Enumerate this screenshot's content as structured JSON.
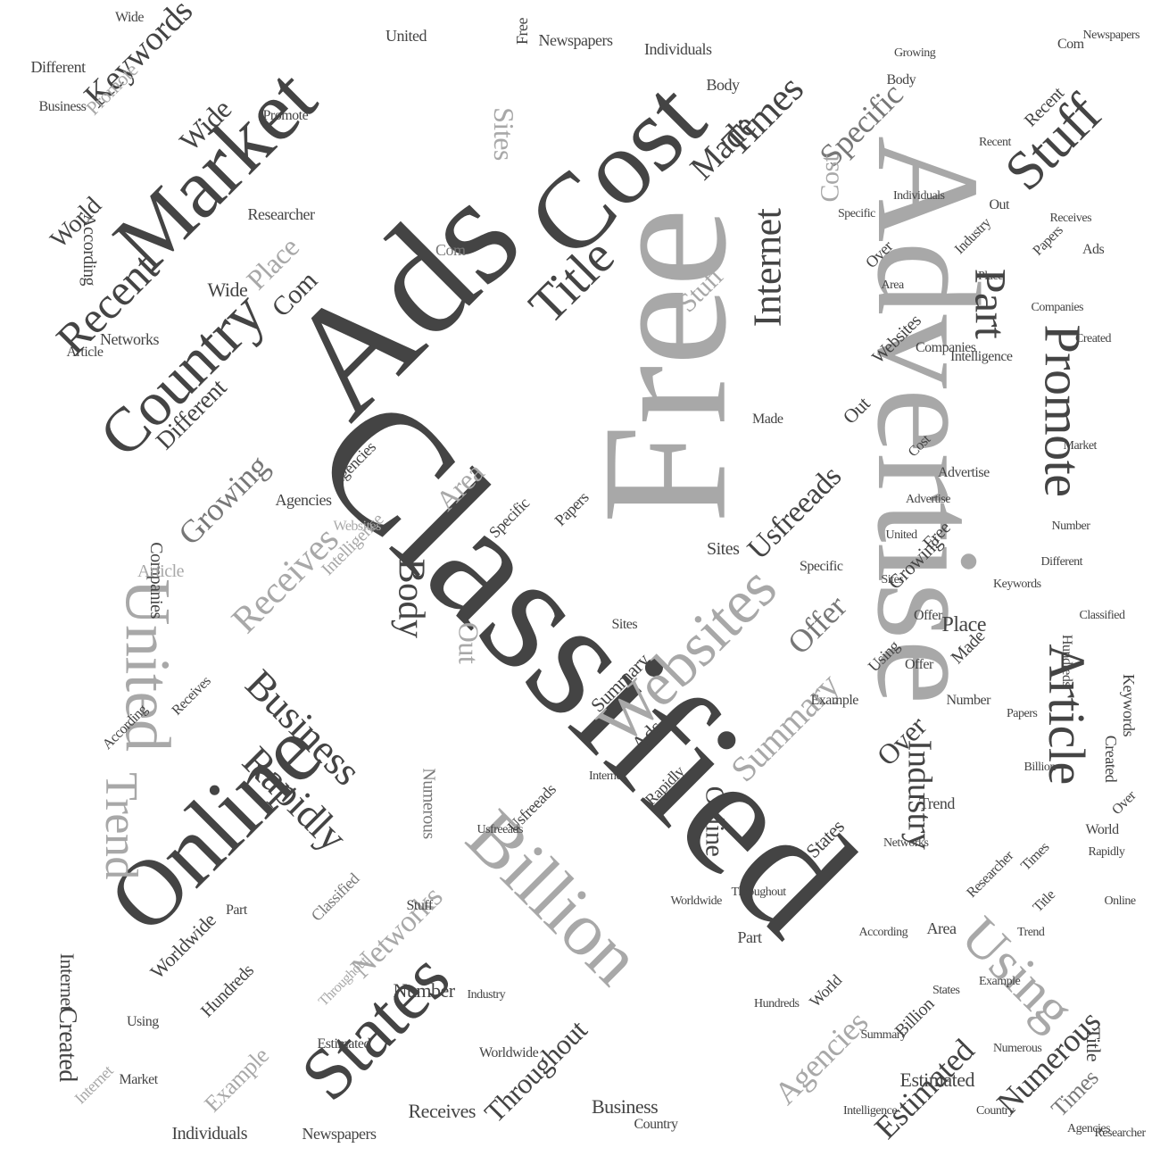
{
  "palette": {
    "dark": "#444444",
    "mid": "#777777",
    "light": "#a8a8a8",
    "faint": "#cfcfcf"
  },
  "words": [
    {
      "text": "Classified",
      "tone": "dark"
    },
    {
      "text": "Free",
      "tone": "light"
    },
    {
      "text": "Advertise",
      "tone": "light"
    },
    {
      "text": "Ads",
      "tone": "dark"
    },
    {
      "text": "Online",
      "tone": "dark"
    },
    {
      "text": "Cost",
      "tone": "dark"
    },
    {
      "text": "Market",
      "tone": "dark"
    },
    {
      "text": "Billion",
      "tone": "light"
    },
    {
      "text": "Websites",
      "tone": "light"
    },
    {
      "text": "United",
      "tone": "light"
    },
    {
      "text": "States",
      "tone": "dark"
    },
    {
      "text": "Country",
      "tone": "dark"
    },
    {
      "text": "Stuff",
      "tone": "dark"
    },
    {
      "text": "Promote",
      "tone": "dark"
    },
    {
      "text": "Article",
      "tone": "dark"
    },
    {
      "text": "Title",
      "tone": "dark"
    },
    {
      "text": "Using",
      "tone": "light"
    },
    {
      "text": "Trend",
      "tone": "light"
    },
    {
      "text": "Recent",
      "tone": "dark"
    },
    {
      "text": "Business",
      "tone": "dark"
    },
    {
      "text": "Rapidly",
      "tone": "dark"
    },
    {
      "text": "Internet",
      "tone": "dark"
    },
    {
      "text": "Times",
      "tone": "dark"
    },
    {
      "text": "Part",
      "tone": "dark"
    },
    {
      "text": "Body",
      "tone": "dark"
    },
    {
      "text": "Receives",
      "tone": "light"
    },
    {
      "text": "Keywords",
      "tone": "dark"
    },
    {
      "text": "Specific",
      "tone": "mid"
    },
    {
      "text": "Summary",
      "tone": "light"
    },
    {
      "text": "Industry",
      "tone": "dark"
    },
    {
      "text": "Growing",
      "tone": "mid"
    },
    {
      "text": "Usfreeads",
      "tone": "dark"
    },
    {
      "text": "Offer",
      "tone": "mid"
    },
    {
      "text": "Made",
      "tone": "dark"
    },
    {
      "text": "Estimated",
      "tone": "dark"
    },
    {
      "text": "Numerous",
      "tone": "dark"
    },
    {
      "text": "Agencies",
      "tone": "light"
    },
    {
      "text": "Throughout",
      "tone": "dark"
    },
    {
      "text": "Networks",
      "tone": "light"
    },
    {
      "text": "Place",
      "tone": "light"
    },
    {
      "text": "Wide",
      "tone": "dark"
    },
    {
      "text": "Different",
      "tone": "dark"
    },
    {
      "text": "Sites",
      "tone": "light"
    },
    {
      "text": "Area",
      "tone": "light"
    },
    {
      "text": "Com",
      "tone": "dark"
    },
    {
      "text": "Out",
      "tone": "light"
    },
    {
      "text": "Over",
      "tone": "dark"
    },
    {
      "text": "Created",
      "tone": "dark"
    },
    {
      "text": "Worldwide",
      "tone": "dark"
    },
    {
      "text": "Hundreds",
      "tone": "dark"
    },
    {
      "text": "Example",
      "tone": "light"
    },
    {
      "text": "Individuals",
      "tone": "dark"
    },
    {
      "text": "Receives",
      "tone": "dark"
    },
    {
      "text": "Newspapers",
      "tone": "dark"
    },
    {
      "text": "Papers",
      "tone": "dark"
    },
    {
      "text": "Companies",
      "tone": "dark"
    },
    {
      "text": "According",
      "tone": "dark"
    },
    {
      "text": "Researcher",
      "tone": "dark"
    },
    {
      "text": "Intelligence",
      "tone": "light"
    },
    {
      "text": "World",
      "tone": "dark"
    },
    {
      "text": "Number",
      "tone": "dark"
    },
    {
      "text": "Cost",
      "tone": "light"
    },
    {
      "text": "Internet",
      "tone": "light"
    },
    {
      "text": "Specific",
      "tone": "dark"
    },
    {
      "text": "Promote",
      "tone": "light"
    },
    {
      "text": "Sites",
      "tone": "dark"
    },
    {
      "text": "Agencies",
      "tone": "dark"
    },
    {
      "text": "Websites",
      "tone": "dark"
    },
    {
      "text": "Article",
      "tone": "light"
    },
    {
      "text": "Ads",
      "tone": "dark"
    },
    {
      "text": "Business",
      "tone": "dark"
    },
    {
      "text": "Times",
      "tone": "mid"
    },
    {
      "text": "Using",
      "tone": "dark"
    },
    {
      "text": "Title",
      "tone": "dark"
    },
    {
      "text": "Keywords",
      "tone": "dark"
    },
    {
      "text": "Online",
      "tone": "dark"
    },
    {
      "text": "Made",
      "tone": "dark"
    },
    {
      "text": "Estimated",
      "tone": "dark"
    },
    {
      "text": "Place",
      "tone": "dark"
    },
    {
      "text": "Wide",
      "tone": "dark"
    },
    {
      "text": "Classified",
      "tone": "mid"
    },
    {
      "text": "Stuff",
      "tone": "light"
    },
    {
      "text": "Market",
      "tone": "dark"
    },
    {
      "text": "Free",
      "tone": "dark"
    },
    {
      "text": "Different",
      "tone": "dark"
    },
    {
      "text": "Growing",
      "tone": "dark"
    },
    {
      "text": "Offer",
      "tone": "dark"
    },
    {
      "text": "Over",
      "tone": "dark"
    },
    {
      "text": "Billion",
      "tone": "dark"
    },
    {
      "text": "Body",
      "tone": "dark"
    },
    {
      "text": "States",
      "tone": "dark"
    },
    {
      "text": "Created",
      "tone": "dark"
    },
    {
      "text": "Recent",
      "tone": "dark"
    },
    {
      "text": "Trend",
      "tone": "dark"
    },
    {
      "text": "Com",
      "tone": "mid"
    },
    {
      "text": "Out",
      "tone": "dark"
    },
    {
      "text": "Part",
      "tone": "dark"
    },
    {
      "text": "Industry",
      "tone": "dark"
    },
    {
      "text": "Individuals",
      "tone": "dark"
    },
    {
      "text": "United",
      "tone": "dark"
    },
    {
      "text": "Country",
      "tone": "dark"
    },
    {
      "text": "Numerous",
      "tone": "mid"
    },
    {
      "text": "Summary",
      "tone": "dark"
    },
    {
      "text": "World",
      "tone": "dark"
    },
    {
      "text": "Hundreds",
      "tone": "dark"
    },
    {
      "text": "Usfreeads",
      "tone": "dark"
    },
    {
      "text": "Rapidly",
      "tone": "dark"
    },
    {
      "text": "Internet",
      "tone": "dark"
    },
    {
      "text": "Number",
      "tone": "dark"
    },
    {
      "text": "Networks",
      "tone": "dark"
    },
    {
      "text": "Throughout",
      "tone": "light"
    },
    {
      "text": "Receives",
      "tone": "dark"
    },
    {
      "text": "Example",
      "tone": "dark"
    },
    {
      "text": "Worldwide",
      "tone": "dark"
    },
    {
      "text": "Advertise",
      "tone": "dark"
    },
    {
      "text": "Newspapers",
      "tone": "dark"
    },
    {
      "text": "Area",
      "tone": "dark"
    },
    {
      "text": "Sites",
      "tone": "dark"
    },
    {
      "text": "Papers",
      "tone": "dark"
    },
    {
      "text": "Intelligence",
      "tone": "dark"
    },
    {
      "text": "According",
      "tone": "dark"
    },
    {
      "text": "Companies",
      "tone": "dark"
    },
    {
      "text": "Researcher",
      "tone": "dark"
    },
    {
      "text": "Specific",
      "tone": "dark"
    },
    {
      "text": "Agencies",
      "tone": "dark"
    },
    {
      "text": "Cost",
      "tone": "dark"
    },
    {
      "text": "Ads",
      "tone": "dark"
    },
    {
      "text": "Made",
      "tone": "dark"
    },
    {
      "text": "Times",
      "tone": "dark"
    },
    {
      "text": "Stuff",
      "tone": "dark"
    },
    {
      "text": "Free",
      "tone": "dark"
    },
    {
      "text": "Title",
      "tone": "dark"
    },
    {
      "text": "Using",
      "tone": "dark"
    },
    {
      "text": "Websites",
      "tone": "light"
    },
    {
      "text": "Business",
      "tone": "dark"
    },
    {
      "text": "Estimated",
      "tone": "dark"
    },
    {
      "text": "Place",
      "tone": "dark"
    },
    {
      "text": "Promote",
      "tone": "dark"
    },
    {
      "text": "Article",
      "tone": "dark"
    },
    {
      "text": "Offer",
      "tone": "dark"
    },
    {
      "text": "Over",
      "tone": "dark"
    },
    {
      "text": "Com",
      "tone": "dark"
    },
    {
      "text": "Out",
      "tone": "dark"
    },
    {
      "text": "Part",
      "tone": "dark"
    },
    {
      "text": "Body",
      "tone": "dark"
    },
    {
      "text": "Wide",
      "tone": "dark"
    },
    {
      "text": "World",
      "tone": "dark"
    },
    {
      "text": "Billion",
      "tone": "dark"
    },
    {
      "text": "Keywords",
      "tone": "dark"
    },
    {
      "text": "Industry",
      "tone": "dark"
    },
    {
      "text": "Numerous",
      "tone": "dark"
    },
    {
      "text": "Number",
      "tone": "dark"
    },
    {
      "text": "Growing",
      "tone": "dark"
    },
    {
      "text": "Different",
      "tone": "dark"
    },
    {
      "text": "Individuals",
      "tone": "dark"
    },
    {
      "text": "Hundreds",
      "tone": "dark"
    },
    {
      "text": "Created",
      "tone": "dark"
    },
    {
      "text": "Trend",
      "tone": "dark"
    },
    {
      "text": "Recent",
      "tone": "dark"
    },
    {
      "text": "Market",
      "tone": "dark"
    },
    {
      "text": "Country",
      "tone": "dark"
    },
    {
      "text": "United",
      "tone": "dark"
    },
    {
      "text": "States",
      "tone": "dark"
    },
    {
      "text": "Online",
      "tone": "dark"
    },
    {
      "text": "Summary",
      "tone": "dark"
    },
    {
      "text": "Usfreeads",
      "tone": "dark"
    },
    {
      "text": "Networks",
      "tone": "dark"
    },
    {
      "text": "Rapidly",
      "tone": "dark"
    },
    {
      "text": "Throughout",
      "tone": "dark"
    },
    {
      "text": "Internet",
      "tone": "dark"
    },
    {
      "text": "Example",
      "tone": "dark"
    },
    {
      "text": "Worldwide",
      "tone": "dark"
    },
    {
      "text": "Receives",
      "tone": "dark"
    },
    {
      "text": "Agencies",
      "tone": "dark"
    },
    {
      "text": "Area",
      "tone": "dark"
    },
    {
      "text": "Sites",
      "tone": "dark"
    },
    {
      "text": "Papers",
      "tone": "dark"
    },
    {
      "text": "Newspapers",
      "tone": "dark"
    },
    {
      "text": "Classified",
      "tone": "dark"
    },
    {
      "text": "Advertise",
      "tone": "dark"
    },
    {
      "text": "Intelligence",
      "tone": "dark"
    },
    {
      "text": "According",
      "tone": "dark"
    },
    {
      "text": "Companies",
      "tone": "dark"
    },
    {
      "text": "Researcher",
      "tone": "dark"
    },
    {
      "text": "Specific",
      "tone": "dark"
    }
  ]
}
